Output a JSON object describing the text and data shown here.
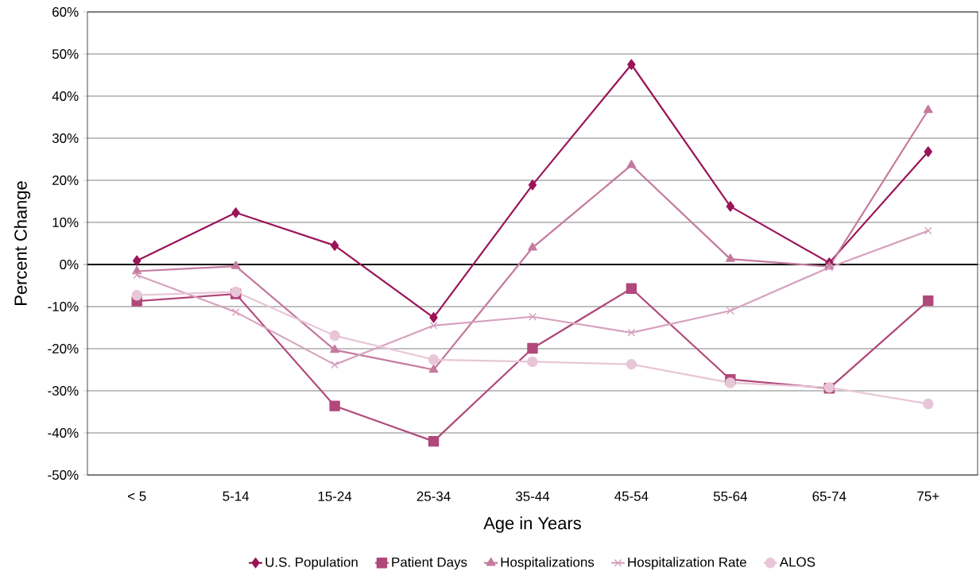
{
  "chart_data": {
    "type": "line",
    "xlabel": "Age in Years",
    "ylabel": "Percent Change",
    "categories": [
      "< 5",
      "5-14",
      "15-24",
      "25-34",
      "35-44",
      "45-54",
      "55-64",
      "65-74",
      "75+"
    ],
    "series": [
      {
        "name": "U.S. Population",
        "color": "#9b1458",
        "marker": "diamond",
        "values": [
          0.9,
          12.3,
          4.5,
          -12.6,
          18.9,
          47.5,
          13.8,
          0.4,
          26.8
        ]
      },
      {
        "name": "Patient Days",
        "color": "#b0487a",
        "marker": "square",
        "values": [
          -8.7,
          -7.0,
          -33.6,
          -42.0,
          -19.9,
          -5.7,
          -27.3,
          -29.4,
          -8.6
        ]
      },
      {
        "name": "Hospitalizations",
        "color": "#c47a9e",
        "marker": "triangle",
        "values": [
          -1.6,
          -0.4,
          -20.3,
          -25.0,
          4.0,
          23.6,
          1.3,
          -0.5,
          36.7
        ]
      },
      {
        "name": "Hospitalization Rate",
        "color": "#d6a2bf",
        "marker": "cross",
        "values": [
          -2.5,
          -11.3,
          -23.8,
          -14.5,
          -12.4,
          -16.2,
          -11.0,
          -0.7,
          8.0
        ]
      },
      {
        "name": "ALOS",
        "color": "#e8c6d7",
        "marker": "circle",
        "values": [
          -7.3,
          -6.5,
          -16.9,
          -22.6,
          -23.1,
          -23.7,
          -28.1,
          -29.2,
          -33.1
        ]
      }
    ],
    "ylim": [
      -50,
      60
    ],
    "yticks": [
      {
        "value": -50,
        "label": "-50%"
      },
      {
        "value": -40,
        "label": "-40%"
      },
      {
        "value": -30,
        "label": "-30%"
      },
      {
        "value": -20,
        "label": "-20%"
      },
      {
        "value": -10,
        "label": "-10%"
      },
      {
        "value": 0,
        "label": "0%"
      },
      {
        "value": 10,
        "label": "10%"
      },
      {
        "value": 20,
        "label": "20%"
      },
      {
        "value": 30,
        "label": "30%"
      },
      {
        "value": 40,
        "label": "40%"
      },
      {
        "value": 50,
        "label": "50%"
      },
      {
        "value": 60,
        "label": "60%"
      }
    ],
    "grid": "y",
    "legend": "bottom",
    "line_style": "solid"
  }
}
